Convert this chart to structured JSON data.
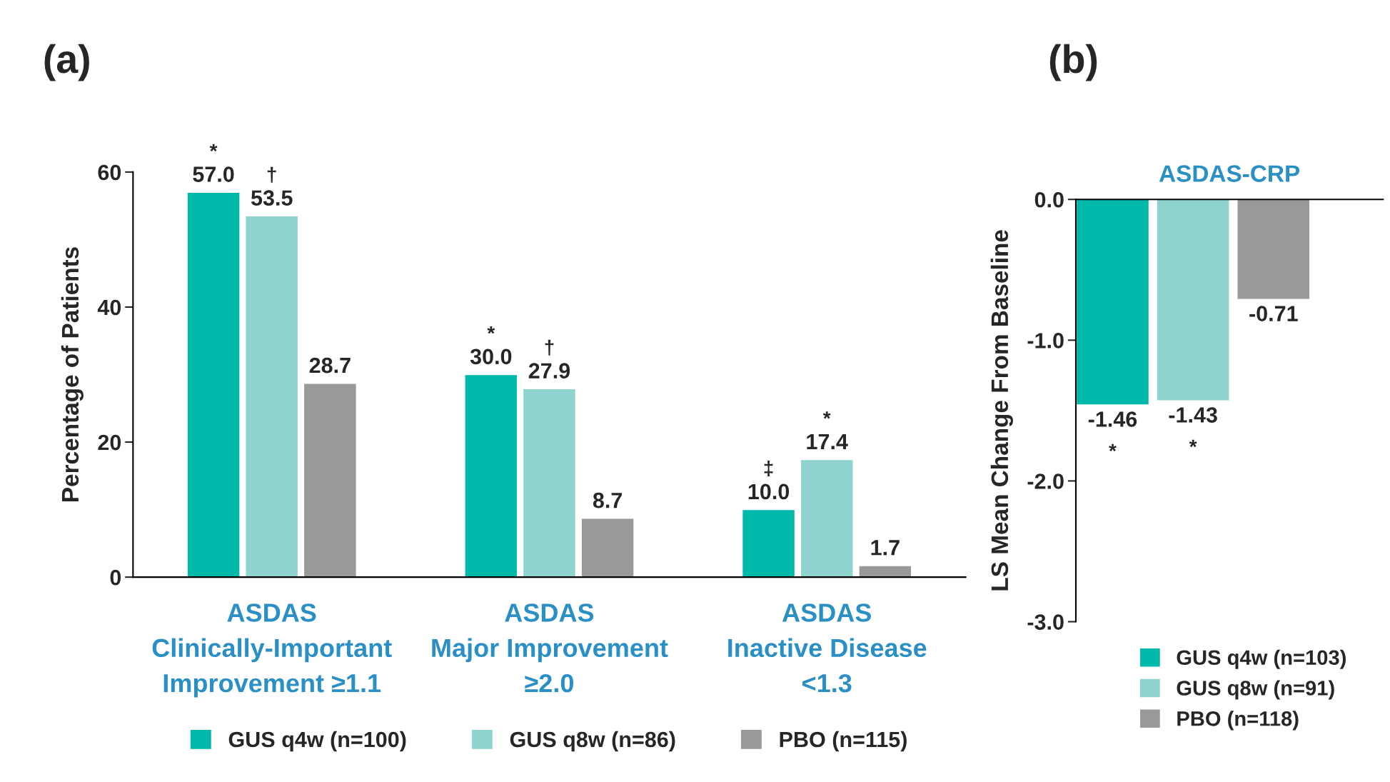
{
  "chart_data": [
    {
      "type": "bar",
      "title": "(a)",
      "ylabel": "Percentage of Patients",
      "categories": [
        "ASDAS\nClinically-Important\nImprovement ≥1.1",
        "ASDAS\nMajor Improvement\n≥2.0",
        "ASDAS\nInactive Disease\n<1.3"
      ],
      "series": [
        {
          "name": "GUS q4w (n=100)",
          "color": "#00b9aa",
          "values": [
            57.0,
            30.0,
            10.0
          ],
          "value_labels": [
            "57.0",
            "30.0",
            "10.0"
          ]
        },
        {
          "name": "GUS q8w (n=86)",
          "color": "#8ed3ce",
          "values": [
            53.5,
            27.9,
            17.4
          ],
          "value_labels": [
            "53.5",
            "27.9",
            "17.4"
          ]
        },
        {
          "name": "PBO (n=115)",
          "color": "#999999",
          "values": [
            28.7,
            8.7,
            1.7
          ],
          "value_labels": [
            "28.7",
            "8.7",
            "1.7"
          ]
        }
      ],
      "ylim": [
        0,
        60
      ],
      "yticks": [
        0,
        20,
        40,
        60
      ],
      "legend": "bottom",
      "grid": false,
      "annotations": [
        "*",
        "†",
        "*",
        "†",
        "‡",
        "*"
      ]
    },
    {
      "type": "bar",
      "title": "(b)",
      "subtitle": "ASDAS-CRP",
      "ylabel": "LS Mean Change From Baseline",
      "categories": [
        null
      ],
      "series": [
        {
          "name": "GUS q4w (n=103)",
          "color": "#00b9aa",
          "values": [
            -1.46
          ]
        },
        {
          "name": "GUS q8w (n=91)",
          "color": "#8ed3ce",
          "values": [
            -1.43
          ]
        },
        {
          "name": "PBO (n=118)",
          "color": "#999999",
          "values": [
            -0.71
          ]
        }
      ],
      "ylim": [
        -3.0,
        0.0
      ],
      "yticks": [
        {
          "value": -3.0,
          "label": "-3.0"
        },
        {
          "value": -2.0,
          "label": "-2.0"
        },
        {
          "value": -1.0,
          "label": "-1.0"
        },
        {
          "value": 0.0,
          "label": "0.0"
        }
      ],
      "data_labels": true,
      "legend": "bottom",
      "grid": false,
      "annotations": [
        "*",
        "*"
      ]
    }
  ]
}
